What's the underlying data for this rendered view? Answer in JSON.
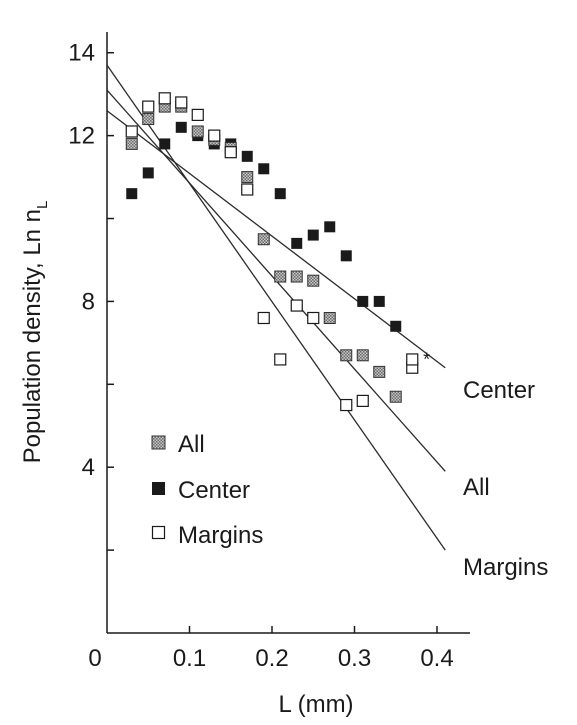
{
  "chart_data": {
    "type": "scatter",
    "xlabel": "L (mm)",
    "ylabel": "Population density,  Ln n",
    "ylabel_subscript": "L",
    "xlim": [
      0,
      0.44
    ],
    "ylim": [
      0,
      14.5
    ],
    "x_tick_values": [
      0,
      0.1,
      0.2,
      0.3,
      0.4
    ],
    "x_tick_labels": [
      "0",
      "0.1",
      "0.2",
      "0.3",
      "0.4"
    ],
    "y_tick_values": [
      2,
      4,
      6,
      8,
      10,
      12,
      14
    ],
    "y_tick_labels": [
      "",
      "4",
      "",
      "8",
      "",
      "12",
      "14"
    ],
    "grid": false,
    "legend_position": "lower-left",
    "series": [
      {
        "name": "All",
        "marker": "hatched-square",
        "x": [
          0.03,
          0.05,
          0.07,
          0.09,
          0.11,
          0.13,
          0.15,
          0.17,
          0.19,
          0.21,
          0.23,
          0.25,
          0.27,
          0.29,
          0.31,
          0.33,
          0.35
        ],
        "y": [
          11.8,
          12.4,
          12.7,
          12.7,
          12.1,
          11.9,
          11.7,
          11.0,
          9.5,
          8.6,
          8.6,
          8.5,
          7.6,
          6.7,
          6.7,
          6.3,
          5.7
        ]
      },
      {
        "name": "Center",
        "marker": "filled-square",
        "x": [
          0.03,
          0.05,
          0.07,
          0.09,
          0.11,
          0.13,
          0.15,
          0.17,
          0.19,
          0.21,
          0.23,
          0.25,
          0.27,
          0.29,
          0.31,
          0.33,
          0.35
        ],
        "y": [
          10.6,
          11.1,
          11.8,
          12.2,
          12.0,
          11.8,
          11.8,
          11.5,
          11.2,
          10.6,
          9.4,
          9.6,
          9.8,
          9.1,
          8.0,
          8.0,
          7.4
        ]
      },
      {
        "name": "Margins",
        "marker": "open-square",
        "x": [
          0.03,
          0.05,
          0.07,
          0.09,
          0.11,
          0.13,
          0.15,
          0.17,
          0.19,
          0.21,
          0.23,
          0.25,
          0.29,
          0.31,
          0.37
        ],
        "y": [
          12.1,
          12.7,
          12.9,
          12.8,
          12.5,
          12.0,
          11.6,
          10.7,
          7.6,
          6.6,
          7.9,
          7.6,
          5.5,
          5.6,
          6.4
        ]
      }
    ],
    "extra_points": [
      {
        "marker": "open-square",
        "x": 0.37,
        "y": 6.6
      }
    ],
    "regression_lines": [
      {
        "name": "Center",
        "x": [
          0,
          0.41
        ],
        "y": [
          12.6,
          6.4
        ]
      },
      {
        "name": "All",
        "x": [
          0,
          0.41
        ],
        "y": [
          13.1,
          3.9
        ]
      },
      {
        "name": "Margins",
        "x": [
          0,
          0.41
        ],
        "y": [
          13.7,
          2.0
        ]
      }
    ],
    "annotations": [
      {
        "text": "*",
        "x": 0.385,
        "y": 6.65
      }
    ],
    "legend_entries": [
      "All",
      "Center",
      "Margins"
    ]
  }
}
